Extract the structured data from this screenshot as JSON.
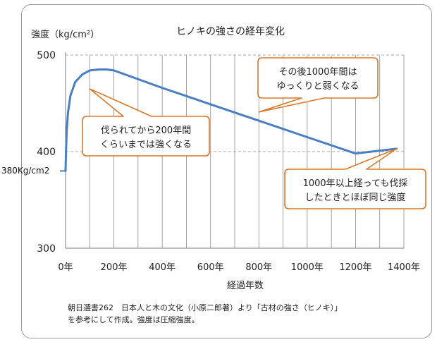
{
  "chart_data": {
    "type": "line",
    "title": "ヒノキの強さの経年変化",
    "ylabel": "強度（kg/cm²）",
    "xlabel": "経過年数",
    "left_label": "380Kg/cm2",
    "x_ticks": [
      "0年",
      "200年",
      "400年",
      "600年",
      "800年",
      "1000年",
      "1200年",
      "1400年"
    ],
    "x_tick_values": [
      0,
      200,
      400,
      600,
      800,
      1000,
      1200,
      1400
    ],
    "y_ticks": [
      "500",
      "400",
      "300"
    ],
    "y_tick_values": [
      500,
      400,
      300
    ],
    "xlim": [
      0,
      1400
    ],
    "ylim": [
      300,
      500
    ],
    "grid": true,
    "series": [
      {
        "color": "#4a7ec2",
        "x": [
          0,
          2,
          5,
          10,
          20,
          40,
          70,
          100,
          140,
          170,
          200,
          400,
          600,
          800,
          1000,
          1200,
          1370
        ],
        "y": [
          380,
          402,
          422,
          440,
          458,
          472,
          480,
          484,
          485,
          485,
          484,
          466,
          449,
          432,
          415,
          398,
          403
        ]
      }
    ],
    "annotations": [
      {
        "lines": [
          "伐られてから200年間",
          "くらいまでは強くなる"
        ],
        "points_to": [
          100,
          465
        ]
      },
      {
        "lines": [
          "その後1000年間は",
          "ゆっくりと弱くなる"
        ],
        "points_to": [
          800,
          441
        ]
      },
      {
        "lines": [
          "1000年以上経っても伐採",
          "したときとほぼ同じ強度"
        ],
        "points_to": [
          1370,
          403
        ]
      }
    ]
  },
  "source_note": {
    "line1": "朝日選書262　日本人と木の文化（小原二郎著）より「古材の強さ（ヒノキ）」",
    "line2": "を参考にして作成。強度は圧縮強度。"
  },
  "colors": {
    "line": "#4a7ec2",
    "callout_border": "#d9782a",
    "grid": "#8c8c8c"
  }
}
